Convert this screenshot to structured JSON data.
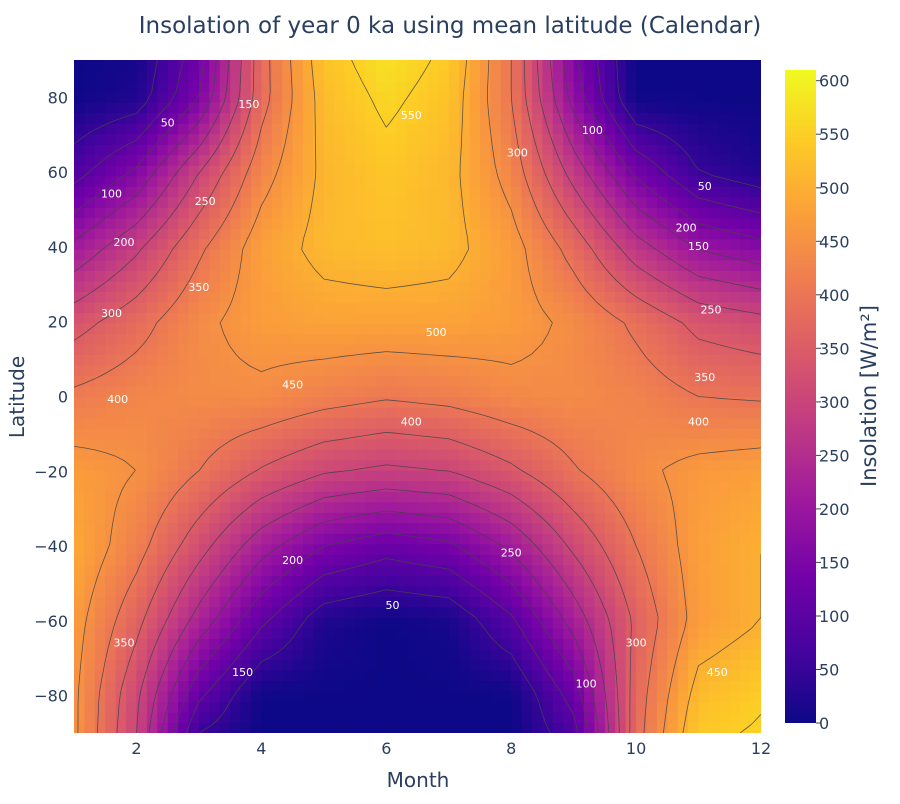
{
  "chart_data": {
    "type": "heatmap",
    "subtype": "contour",
    "title": "Insolation of year 0 ka using mean latitude (Calendar)",
    "xlabel": "Month",
    "ylabel": "Latitude",
    "colorbar_title": "Insolation [W/m²]",
    "xlim": [
      1,
      12
    ],
    "ylim": [
      -90,
      90
    ],
    "zlim": [
      0,
      610
    ],
    "x_ticks": [
      2,
      4,
      6,
      8,
      10,
      12
    ],
    "y_ticks": [
      -80,
      -60,
      -40,
      -20,
      0,
      20,
      40,
      60,
      80
    ],
    "colorbar_ticks": [
      0,
      50,
      100,
      150,
      200,
      250,
      300,
      350,
      400,
      450,
      500,
      550,
      600
    ],
    "colorscale": [
      "#0d0887",
      "#46039f",
      "#7201a8",
      "#9c179e",
      "#bd3786",
      "#d8576b",
      "#ed7953",
      "#fb9f3a",
      "#fdca26",
      "#f0f921"
    ],
    "contour_interval": 50,
    "contour_color": "#444444",
    "x": [
      1,
      2,
      3,
      4,
      5,
      6,
      7,
      8,
      9,
      10,
      11,
      12
    ],
    "y": [
      -90,
      -80,
      -60,
      -40,
      -20,
      0,
      20,
      40,
      60,
      80,
      90
    ],
    "z": [
      [
        460,
        300,
        50,
        0,
        0,
        0,
        0,
        0,
        80,
        380,
        540,
        555
      ],
      [
        460,
        310,
        110,
        0,
        0,
        0,
        0,
        0,
        120,
        375,
        520,
        545
      ],
      [
        470,
        365,
        230,
        110,
        20,
        0,
        10,
        90,
        220,
        360,
        470,
        500
      ],
      [
        490,
        420,
        320,
        220,
        150,
        120,
        140,
        210,
        310,
        400,
        475,
        500
      ],
      [
        470,
        450,
        400,
        345,
        305,
        290,
        300,
        340,
        395,
        440,
        465,
        475
      ],
      [
        410,
        430,
        440,
        440,
        420,
        405,
        415,
        435,
        440,
        425,
        400,
        395
      ],
      [
        330,
        380,
        440,
        470,
        480,
        480,
        480,
        470,
        440,
        390,
        335,
        315
      ],
      [
        210,
        290,
        390,
        475,
        515,
        525,
        515,
        470,
        380,
        270,
        195,
        165
      ],
      [
        80,
        160,
        300,
        430,
        510,
        535,
        515,
        430,
        280,
        140,
        50,
        20
      ],
      [
        0,
        20,
        150,
        380,
        520,
        560,
        530,
        400,
        180,
        0,
        0,
        0
      ],
      [
        0,
        10,
        130,
        380,
        530,
        575,
        540,
        400,
        160,
        0,
        0,
        0
      ]
    ],
    "contour_labels": [
      {
        "text": "50",
        "x": 2.5,
        "y": 73
      },
      {
        "text": "150",
        "x": 3.8,
        "y": 78
      },
      {
        "text": "100",
        "x": 1.6,
        "y": 54
      },
      {
        "text": "250",
        "x": 3.1,
        "y": 52
      },
      {
        "text": "200",
        "x": 1.8,
        "y": 41
      },
      {
        "text": "350",
        "x": 3.0,
        "y": 29
      },
      {
        "text": "300",
        "x": 1.6,
        "y": 22
      },
      {
        "text": "400",
        "x": 1.7,
        "y": -1
      },
      {
        "text": "550",
        "x": 6.4,
        "y": 75
      },
      {
        "text": "500",
        "x": 6.8,
        "y": 17
      },
      {
        "text": "450",
        "x": 4.5,
        "y": 3
      },
      {
        "text": "400",
        "x": 6.4,
        "y": -7
      },
      {
        "text": "300",
        "x": 8.1,
        "y": 65
      },
      {
        "text": "100",
        "x": 9.3,
        "y": 71
      },
      {
        "text": "50",
        "x": 11.1,
        "y": 56
      },
      {
        "text": "200",
        "x": 10.8,
        "y": 45
      },
      {
        "text": "150",
        "x": 11.0,
        "y": 40
      },
      {
        "text": "250",
        "x": 11.2,
        "y": 23
      },
      {
        "text": "350",
        "x": 11.1,
        "y": 5
      },
      {
        "text": "400",
        "x": 11.0,
        "y": -7
      },
      {
        "text": "200",
        "x": 4.5,
        "y": -44
      },
      {
        "text": "250",
        "x": 8.0,
        "y": -42
      },
      {
        "text": "50",
        "x": 6.1,
        "y": -56
      },
      {
        "text": "350",
        "x": 1.8,
        "y": -66
      },
      {
        "text": "150",
        "x": 3.7,
        "y": -74
      },
      {
        "text": "300",
        "x": 10.0,
        "y": -66
      },
      {
        "text": "100",
        "x": 9.2,
        "y": -77
      },
      {
        "text": "450",
        "x": 11.3,
        "y": -74
      }
    ]
  }
}
